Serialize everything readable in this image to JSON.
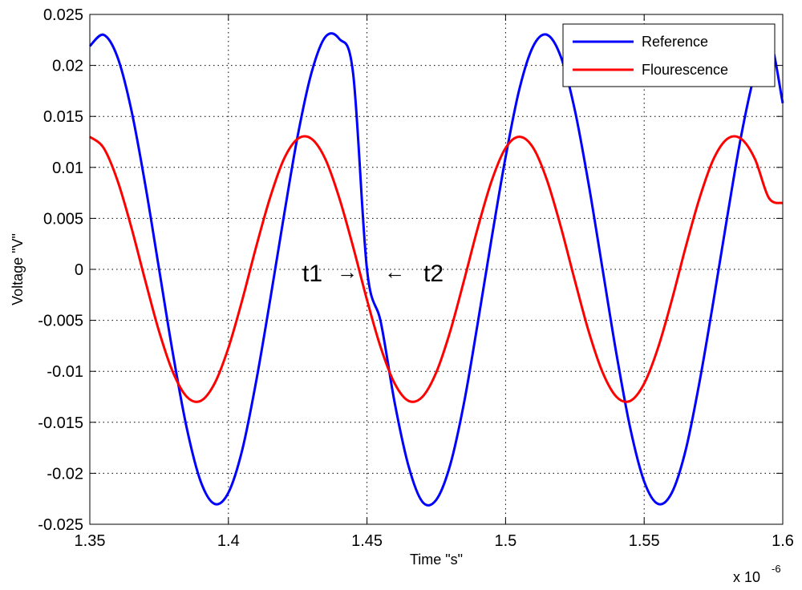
{
  "chart_data": {
    "type": "line",
    "title": "",
    "xlabel": "Time \"s\"",
    "ylabel": "Voltage \"V\"",
    "x_multiplier_label": "x 10",
    "x_multiplier_exponent": "-6",
    "xlim": [
      1.35,
      1.6
    ],
    "ylim": [
      -0.025,
      0.025
    ],
    "xticks": [
      1.35,
      1.4,
      1.45,
      1.5,
      1.55,
      1.6
    ],
    "xtick_labels": [
      "1.35",
      "1.4",
      "1.45",
      "1.5",
      "1.55",
      "1.6"
    ],
    "yticks": [
      0.025,
      0.02,
      0.015,
      0.01,
      0.005,
      0,
      -0.005,
      -0.01,
      -0.015,
      -0.02,
      -0.025
    ],
    "ytick_labels": [
      "0.025",
      "0.02",
      "0.015",
      "0.01",
      "0.005",
      "0",
      "-0.005",
      "-0.01",
      "-0.015",
      "-0.02",
      "-0.025"
    ],
    "grid": true,
    "legend_position": "top-right",
    "series": [
      {
        "name": "Reference",
        "color": "#0000ff",
        "x": [
          1.35,
          1.355,
          1.36,
          1.365,
          1.37,
          1.375,
          1.38,
          1.385,
          1.39,
          1.395,
          1.4,
          1.405,
          1.41,
          1.415,
          1.42,
          1.425,
          1.43,
          1.435,
          1.44,
          1.445,
          1.45,
          1.455,
          1.46,
          1.465,
          1.47,
          1.475,
          1.48,
          1.485,
          1.49,
          1.495,
          1.5,
          1.505,
          1.51,
          1.515,
          1.52,
          1.525,
          1.53,
          1.535,
          1.54,
          1.545,
          1.55,
          1.555,
          1.56,
          1.565,
          1.57,
          1.575,
          1.58,
          1.585,
          1.59,
          1.595,
          1.6
        ],
        "y": [
          0.0219,
          0.023,
          0.0208,
          0.0156,
          0.0083,
          0.0,
          -0.0083,
          -0.0156,
          -0.0208,
          -0.023,
          -0.0219,
          -0.0177,
          -0.011,
          -0.0031,
          0.0052,
          0.0131,
          0.0193,
          0.0228,
          0.0226,
          0.0192,
          0.0,
          -0.0052,
          -0.0131,
          -0.0193,
          -0.0228,
          -0.0226,
          -0.0192,
          -0.0131,
          -0.0052,
          0.0031,
          0.011,
          0.0177,
          0.0219,
          0.023,
          0.0208,
          0.0156,
          0.0083,
          0.0,
          -0.0083,
          -0.0156,
          -0.0208,
          -0.023,
          -0.0219,
          -0.0177,
          -0.011,
          -0.0031,
          0.0052,
          0.0131,
          0.0193,
          0.0228,
          0.0163
        ]
      },
      {
        "name": "Flourescence",
        "color": "#ff0000",
        "x": [
          1.35,
          1.355,
          1.36,
          1.365,
          1.37,
          1.375,
          1.38,
          1.385,
          1.39,
          1.395,
          1.4,
          1.405,
          1.41,
          1.415,
          1.42,
          1.425,
          1.43,
          1.435,
          1.44,
          1.445,
          1.45,
          1.455,
          1.46,
          1.465,
          1.47,
          1.475,
          1.48,
          1.485,
          1.49,
          1.495,
          1.5,
          1.505,
          1.51,
          1.515,
          1.52,
          1.525,
          1.53,
          1.535,
          1.54,
          1.545,
          1.55,
          1.555,
          1.56,
          1.565,
          1.57,
          1.575,
          1.58,
          1.585,
          1.59,
          1.595,
          1.6
        ],
        "y": [
          0.013,
          0.0119,
          0.0087,
          0.0041,
          -0.0011,
          -0.0061,
          -0.0101,
          -0.0125,
          -0.0129,
          -0.0112,
          -0.0077,
          -0.003,
          0.0022,
          0.007,
          0.0108,
          0.0128,
          0.0128,
          0.0108,
          0.007,
          0.0022,
          -0.003,
          -0.0077,
          -0.0112,
          -0.0129,
          -0.0125,
          -0.0101,
          -0.0061,
          -0.0011,
          0.0041,
          0.0087,
          0.0119,
          0.013,
          0.0119,
          0.0087,
          0.0041,
          -0.0011,
          -0.0061,
          -0.0101,
          -0.0125,
          -0.0129,
          -0.0112,
          -0.0077,
          -0.003,
          0.0022,
          0.007,
          0.0108,
          0.0128,
          0.0128,
          0.0108,
          0.007,
          0.0065
        ]
      }
    ],
    "annotations": [
      {
        "label": "t1",
        "arrow": "→",
        "x": 1.45,
        "y": 0
      },
      {
        "label": "t2",
        "arrow": "←",
        "x": 1.452,
        "y": 0
      }
    ]
  }
}
